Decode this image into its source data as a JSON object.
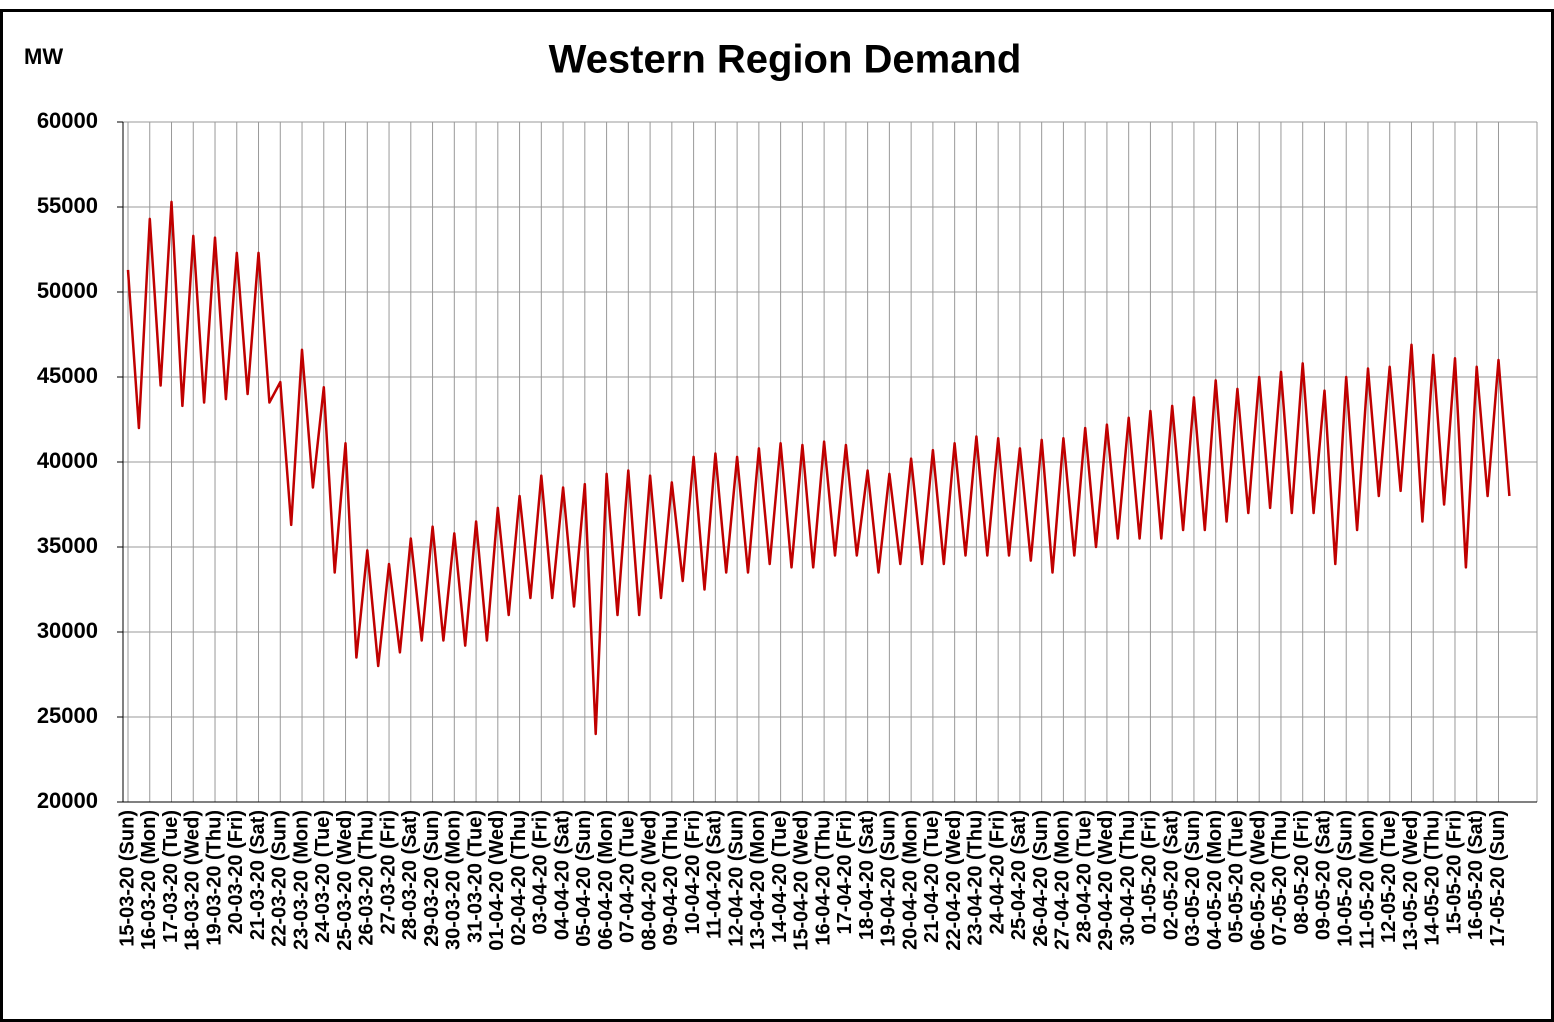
{
  "chart_data": {
    "type": "line",
    "title": "Western Region Demand",
    "y_label": "MW",
    "grid": true,
    "ylim": [
      20000,
      60000
    ],
    "yticks": [
      20000,
      25000,
      30000,
      35000,
      40000,
      45000,
      50000,
      55000,
      60000
    ],
    "categories": [
      "15-03-20 (Sun)",
      null,
      "16-03-20 (Mon)",
      null,
      "17-03-20 (Tue)",
      null,
      "18-03-20 (Wed)",
      null,
      "19-03-20 (Thu)",
      null,
      "20-03-20 (Fri)",
      null,
      "21-03-20 (Sat)",
      null,
      "22-03-20 (Sun)",
      null,
      "23-03-20 (Mon)",
      null,
      "24-03-20 (Tue)",
      null,
      "25-03-20 (Wed)",
      null,
      "26-03-20 (Thu)",
      null,
      "27-03-20 (Fri)",
      null,
      "28-03-20 (Sat)",
      null,
      "29-03-20 (Sun)",
      null,
      "30-03-20 (Mon)",
      null,
      "31-03-20 (Tue)",
      null,
      "01-04-20 (Wed)",
      null,
      "02-04-20 (Thu)",
      null,
      "03-04-20 (Fri)",
      null,
      "04-04-20 (Sat)",
      null,
      "05-04-20 (Sun)",
      null,
      "06-04-20 (Mon)",
      null,
      "07-04-20 (Tue)",
      null,
      "08-04-20 (Wed)",
      null,
      "09-04-20 (Thu)",
      null,
      "10-04-20 (Fri)",
      null,
      "11-04-20 (Sat)",
      null,
      "12-04-20 (Sun)",
      null,
      "13-04-20 (Mon)",
      null,
      "14-04-20 (Tue)",
      null,
      "15-04-20 (Wed)",
      null,
      "16-04-20 (Thu)",
      null,
      "17-04-20 (Fri)",
      null,
      "18-04-20 (Sat)",
      null,
      "19-04-20 (Sun)",
      null,
      "20-04-20 (Mon)",
      null,
      "21-04-20 (Tue)",
      null,
      "22-04-20 (Wed)",
      null,
      "23-04-20 (Thu)",
      null,
      "24-04-20 (Fri)",
      null,
      "25-04-20 (Sat)",
      null,
      "26-04-20 (Sun)",
      null,
      "27-04-20 (Mon)",
      null,
      "28-04-20 (Tue)",
      null,
      "29-04-20 (Wed)",
      null,
      "30-04-20 (Thu)",
      null,
      "01-05-20 (Fri)",
      null,
      "02-05-20 (Sat)",
      null,
      "03-05-20 (Sun)",
      null,
      "04-05-20 (Mon)",
      null,
      "05-05-20 (Tue)",
      null,
      "06-05-20 (Wed)",
      null,
      "07-05-20 (Thu)",
      null,
      "08-05-20 (Fri)",
      null,
      "09-05-20 (Sat)",
      null,
      "10-05-20 (Sun)",
      null,
      "11-05-20 (Mon)",
      null,
      "12-05-20 (Tue)",
      null,
      "13-05-20 (Wed)",
      null,
      "14-05-20 (Thu)",
      null,
      "15-05-20 (Fri)",
      null,
      "16-05-20 (Sat)",
      null,
      "17-05-20 (Sun)",
      null
    ],
    "series": [
      {
        "color": "#c00000",
        "values": [
          51300,
          42000,
          54300,
          44500,
          55300,
          43300,
          53300,
          43500,
          53200,
          43700,
          52300,
          44000,
          52300,
          43500,
          44700,
          36300,
          46600,
          38500,
          44400,
          33500,
          41100,
          28500,
          34800,
          28000,
          34000,
          28800,
          35500,
          29500,
          36200,
          29500,
          35800,
          29200,
          36500,
          29500,
          37300,
          31000,
          38000,
          32000,
          39200,
          32000,
          38500,
          31500,
          38700,
          24000,
          39300,
          31000,
          39500,
          31000,
          39200,
          32000,
          38800,
          33000,
          40300,
          32500,
          40500,
          33500,
          40300,
          33500,
          40800,
          34000,
          41100,
          33800,
          41000,
          33800,
          41200,
          34500,
          41000,
          34500,
          39500,
          33500,
          39300,
          34000,
          40200,
          34000,
          40700,
          34000,
          41100,
          34500,
          41500,
          34500,
          41400,
          34500,
          40800,
          34200,
          41300,
          33500,
          41400,
          34500,
          42000,
          35000,
          42200,
          35500,
          42600,
          35500,
          43000,
          35500,
          43300,
          36000,
          43800,
          36000,
          44800,
          36500,
          44300,
          37000,
          45000,
          37300,
          45300,
          37000,
          45800,
          37000,
          44200,
          34000,
          45000,
          36000,
          45500,
          38000,
          45600,
          38300,
          46900,
          36500,
          46300,
          37500,
          46100,
          33800,
          45600,
          38000,
          46000,
          38000
        ]
      }
    ]
  }
}
